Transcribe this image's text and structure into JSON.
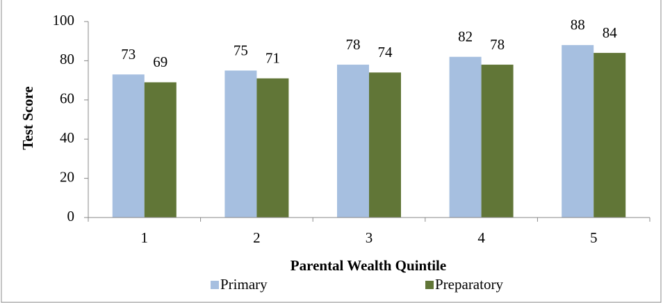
{
  "chart_data": {
    "type": "bar",
    "categories": [
      "1",
      "2",
      "3",
      "4",
      "5"
    ],
    "series": [
      {
        "name": "Primary",
        "color": "#a6bfe0",
        "values": [
          73,
          75,
          78,
          82,
          88
        ]
      },
      {
        "name": "Preparatory",
        "color": "#617637",
        "values": [
          69,
          71,
          74,
          78,
          84
        ]
      }
    ],
    "xlabel": "Parental Wealth Quintile",
    "ylabel": "Test Score",
    "ylim": [
      0,
      100
    ],
    "yticks": [
      0,
      20,
      40,
      60,
      80,
      100
    ],
    "grid": false,
    "legend": "bottom"
  }
}
